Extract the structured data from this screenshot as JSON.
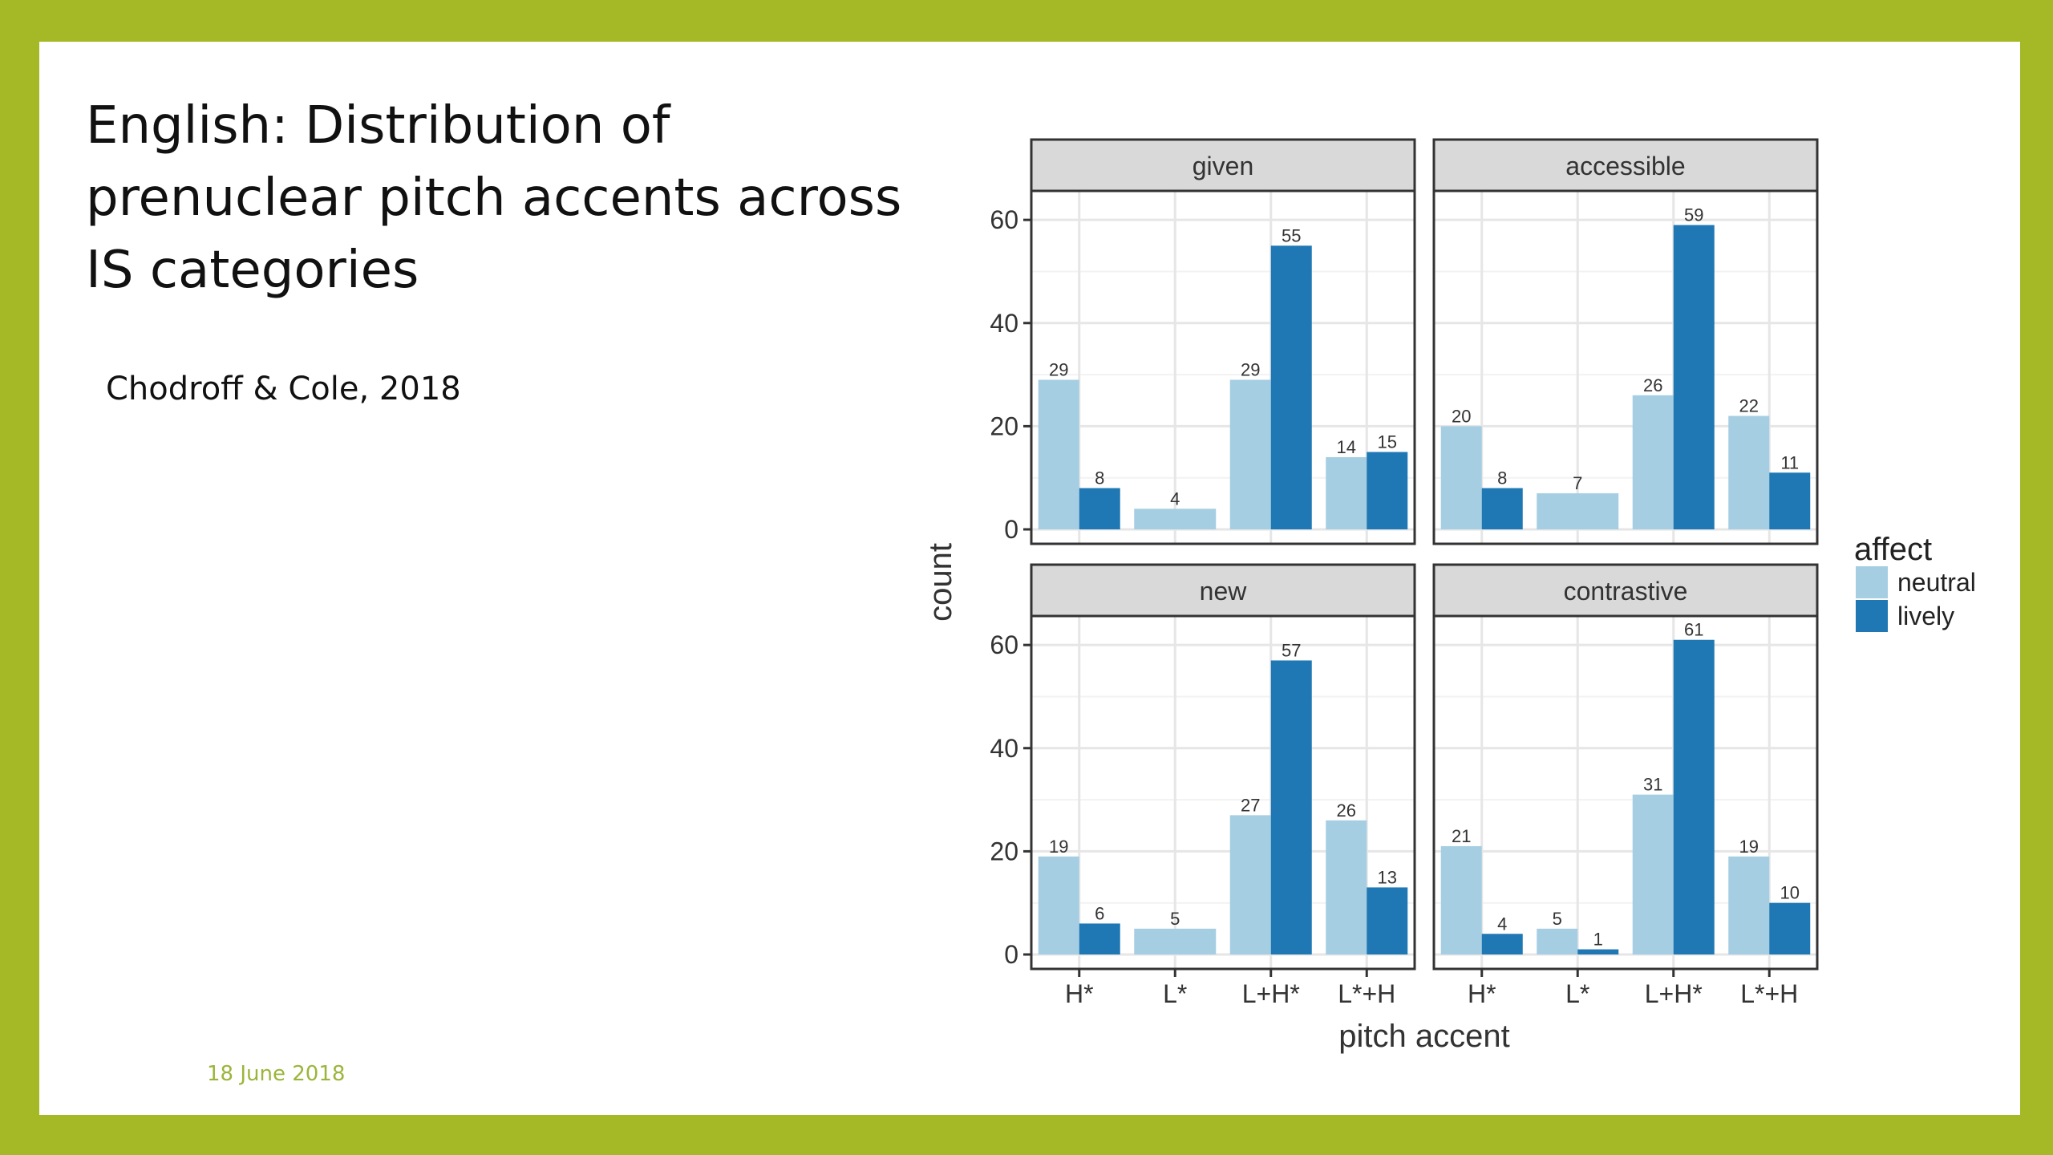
{
  "slide": {
    "title": "English: Distribution of prenuclear pitch accents across IS categories",
    "citation": "Chodroff & Cole, 2018",
    "footer_date": "18 June  2018"
  },
  "colors": {
    "frame": "#a5b826",
    "background": "#ffffff",
    "neutral": "#a6cee3",
    "lively": "#1f78b4",
    "strip": "#d9d9d9",
    "footer_text": "#9bb53a"
  },
  "chart_data": {
    "type": "bar",
    "facets": [
      "given",
      "accessible",
      "new",
      "contrastive"
    ],
    "categories": [
      "H*",
      "L*",
      "L+H*",
      "L*+H"
    ],
    "xlabel": "pitch accent",
    "ylabel": "count",
    "ylim": [
      0,
      65
    ],
    "yticks": [
      0,
      20,
      40,
      60
    ],
    "grid": true,
    "legend": {
      "title": "affect",
      "position": "right",
      "entries": [
        "neutral",
        "lively"
      ]
    },
    "panels": [
      {
        "facet": "given",
        "series": [
          {
            "name": "neutral",
            "values": [
              29,
              4,
              29,
              14
            ]
          },
          {
            "name": "lively",
            "values": [
              8,
              null,
              55,
              15
            ]
          }
        ]
      },
      {
        "facet": "accessible",
        "series": [
          {
            "name": "neutral",
            "values": [
              20,
              7,
              26,
              22
            ]
          },
          {
            "name": "lively",
            "values": [
              8,
              null,
              59,
              11
            ]
          }
        ]
      },
      {
        "facet": "new",
        "series": [
          {
            "name": "neutral",
            "values": [
              19,
              5,
              27,
              26
            ]
          },
          {
            "name": "lively",
            "values": [
              6,
              null,
              57,
              13
            ]
          }
        ]
      },
      {
        "facet": "contrastive",
        "series": [
          {
            "name": "neutral",
            "values": [
              21,
              5,
              31,
              19
            ]
          },
          {
            "name": "lively",
            "values": [
              4,
              1,
              61,
              10
            ]
          }
        ]
      }
    ]
  }
}
